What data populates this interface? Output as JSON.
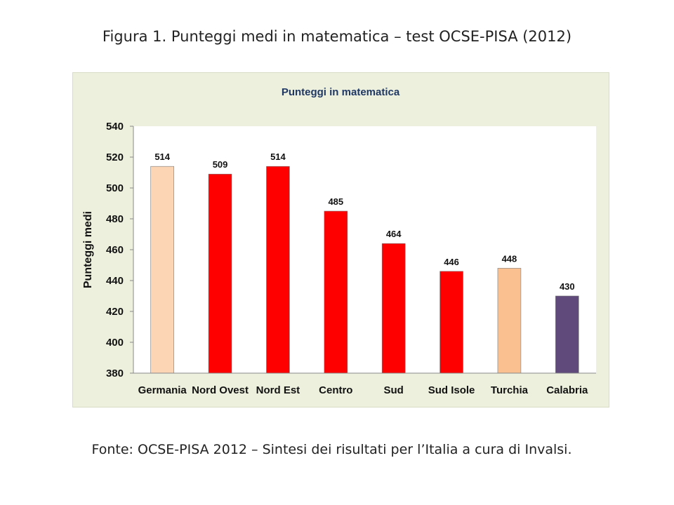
{
  "figure_title": "Figura 1. Punteggi medi in matematica – test OCSE-PISA (2012)",
  "source_note": "Fonte: OCSE-PISA 2012 – Sintesi dei risultati per l’Italia a cura di Invalsi.",
  "chart_data": {
    "type": "bar",
    "title": "Punteggi in matematica",
    "xlabel": "",
    "ylabel": "Punteggi medi",
    "ylim": [
      380,
      540
    ],
    "yticks": [
      380,
      400,
      420,
      440,
      460,
      480,
      500,
      520,
      540
    ],
    "grid": false,
    "categories": [
      "Germania",
      "Nord Ovest",
      "Nord Est",
      "Centro",
      "Sud",
      "Sud Isole",
      "Turchia",
      "Calabria"
    ],
    "values": [
      514,
      509,
      514,
      485,
      464,
      446,
      448,
      430
    ],
    "bar_colors": [
      "#fcd5b5",
      "#ff0000",
      "#ff0000",
      "#ff0000",
      "#ff0000",
      "#ff0000",
      "#fac090",
      "#604a7b"
    ],
    "data_labels": [
      "514",
      "509",
      "514",
      "485",
      "464",
      "446",
      "448",
      "430"
    ],
    "background_color": "#eef0de",
    "plot_color": "#ffffff"
  }
}
